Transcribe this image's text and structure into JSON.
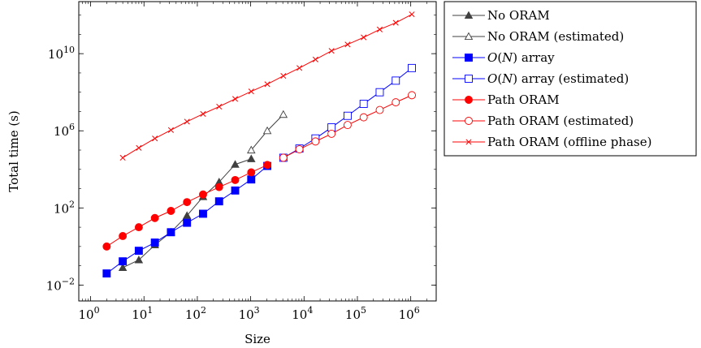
{
  "chart_data": {
    "type": "line",
    "xlabel": "Size",
    "ylabel": "Total time (s)",
    "x_scale": "log",
    "y_scale": "log",
    "xlim": [
      0.6,
      3000000
    ],
    "ylim": [
      0.0015,
      5000000000000
    ],
    "x_ticks": [
      {
        "value": 1,
        "base": "10",
        "exp": "0"
      },
      {
        "value": 10,
        "base": "10",
        "exp": "1"
      },
      {
        "value": 100,
        "base": "10",
        "exp": "2"
      },
      {
        "value": 1000,
        "base": "10",
        "exp": "3"
      },
      {
        "value": 10000,
        "base": "10",
        "exp": "4"
      },
      {
        "value": 100000,
        "base": "10",
        "exp": "5"
      },
      {
        "value": 1000000,
        "base": "10",
        "exp": "6"
      }
    ],
    "y_ticks": [
      {
        "value": 0.01,
        "base": "10",
        "exp": "−2"
      },
      {
        "value": 100,
        "base": "10",
        "exp": "2"
      },
      {
        "value": 1000000,
        "base": "10",
        "exp": "6"
      },
      {
        "value": 10000000000,
        "base": "10",
        "exp": "10"
      }
    ],
    "grid": false,
    "legend_position": "outside-right",
    "series": [
      {
        "name": "No ORAM",
        "color": "#404040",
        "marker": "triangle-filled",
        "x": [
          4,
          8,
          16,
          32,
          64,
          128,
          256,
          512,
          1024
        ],
        "y": [
          0.08,
          0.2,
          1.2,
          5.5,
          40,
          380,
          2200,
          18000,
          35000
        ]
      },
      {
        "name": "No ORAM (estimated)",
        "color": "#404040",
        "marker": "triangle-open",
        "x": [
          1024,
          2048,
          4096
        ],
        "y": [
          100000,
          1000000,
          7000000
        ]
      },
      {
        "name": "O(N) array",
        "name_parts": {
          "prefix": "O",
          "open": "(",
          "var": "N",
          "close": ")",
          "suffix": " array"
        },
        "color": "#0000ff",
        "marker": "square-filled",
        "x": [
          2,
          4,
          8,
          16,
          32,
          64,
          128,
          256,
          512,
          1024,
          2048
        ],
        "y": [
          0.04,
          0.17,
          0.6,
          1.6,
          5.5,
          17,
          50,
          220,
          800,
          3000,
          15000
        ]
      },
      {
        "name": "O(N) array (estimated)",
        "name_parts": {
          "prefix": "O",
          "open": "(",
          "var": "N",
          "close": ")",
          "suffix": " array (estimated)"
        },
        "color": "#0000ff",
        "marker": "square-open",
        "x": [
          4096,
          8192,
          16384,
          32768,
          65536,
          131072,
          262144,
          524288,
          1048576
        ],
        "y": [
          40000,
          120000,
          400000,
          1500000,
          6000000,
          25000000,
          100000000,
          400000000,
          1800000000
        ]
      },
      {
        "name": "Path ORAM",
        "color": "#ff0000",
        "marker": "circle-filled",
        "x": [
          2,
          4,
          8,
          16,
          32,
          64,
          128,
          256,
          512,
          1024,
          2048
        ],
        "y": [
          1,
          3.5,
          10,
          30,
          70,
          200,
          500,
          1200,
          2800,
          7000,
          17000
        ]
      },
      {
        "name": "Path ORAM (estimated)",
        "color": "#ff0000",
        "marker": "circle-open",
        "x": [
          4096,
          8192,
          16384,
          32768,
          65536,
          131072,
          262144,
          524288,
          1048576
        ],
        "y": [
          40000,
          110000,
          280000,
          700000,
          2000000,
          5000000,
          12000000,
          30000000,
          70000000
        ]
      },
      {
        "name": "Path ORAM (offline phase)",
        "color": "#ff0000",
        "marker": "cross",
        "x": [
          4,
          8,
          16,
          32,
          64,
          128,
          256,
          512,
          1024,
          2048,
          4096,
          8192,
          16384,
          32768,
          65536,
          131072,
          262144,
          524288,
          1048576
        ],
        "y": [
          40000,
          130000,
          400000,
          1100000,
          3000000,
          7500000,
          18000000,
          45000000,
          110000000,
          260000000,
          700000000,
          1800000000,
          5000000000,
          14000000000,
          30000000000,
          70000000000,
          180000000000,
          400000000000,
          1100000000000
        ]
      }
    ]
  }
}
